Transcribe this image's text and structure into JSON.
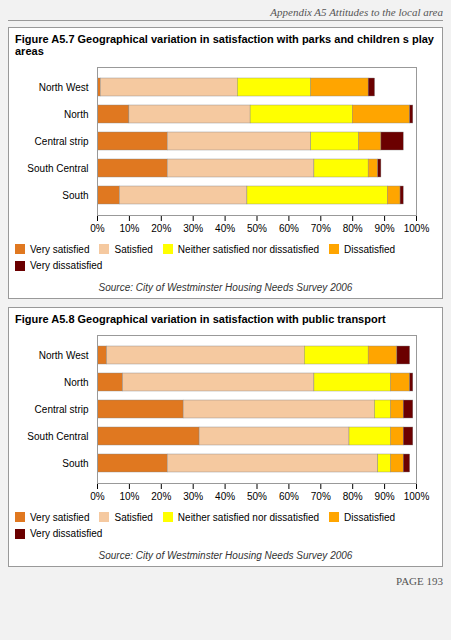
{
  "chart_data": [
    {
      "type": "bar",
      "orientation": "horizontal",
      "stacked": true,
      "legend": "bottom",
      "grid": false,
      "title": "Figure A5.7 Geographical variation in satisfaction with parks and children s play areas",
      "categories": [
        "North West",
        "North",
        "Central strip",
        "South Central",
        "South"
      ],
      "series": [
        {
          "name": "Very satisfied",
          "color": "#E07820",
          "values": [
            1,
            10,
            22,
            22,
            7
          ]
        },
        {
          "name": "Satisfied",
          "color": "#F5C9A0",
          "values": [
            43,
            38,
            45,
            46,
            40
          ]
        },
        {
          "name": "Neither satisfied nor dissatisfied",
          "color": "#FFFF00",
          "values": [
            23,
            32,
            15,
            17,
            44
          ]
        },
        {
          "name": "Dissatisfied",
          "color": "#FFA500",
          "values": [
            18,
            18,
            7,
            3,
            4
          ]
        },
        {
          "name": "Very dissatisfied",
          "color": "#6B0000",
          "values": [
            2,
            1,
            7,
            1,
            1
          ]
        }
      ],
      "xlim": [
        0,
        100
      ],
      "xticks": [
        {
          "value": 0,
          "label": "0%"
        },
        {
          "value": 10,
          "label": "10%"
        },
        {
          "value": 20,
          "label": "20%"
        },
        {
          "value": 30,
          "label": "30%"
        },
        {
          "value": 40,
          "label": "40%"
        },
        {
          "value": 50,
          "label": "50%"
        },
        {
          "value": 60,
          "label": "60%"
        },
        {
          "value": 70,
          "label": "70%"
        },
        {
          "value": 80,
          "label": "80%"
        },
        {
          "value": 90,
          "label": "90%"
        },
        {
          "value": 100,
          "label": "100%"
        }
      ],
      "annotations": [
        "Source: City of Westminster Housing Needs Survey 2006"
      ]
    },
    {
      "type": "bar",
      "orientation": "horizontal",
      "stacked": true,
      "legend": "bottom",
      "grid": false,
      "title": "Figure A5.8 Geographical variation in satisfaction with public transport",
      "categories": [
        "North West",
        "North",
        "Central strip",
        "South Central",
        "South"
      ],
      "series": [
        {
          "name": "Very satisfied",
          "color": "#E07820",
          "values": [
            3,
            8,
            27,
            32,
            22
          ]
        },
        {
          "name": "Satisfied",
          "color": "#F5C9A0",
          "values": [
            62,
            60,
            60,
            47,
            66
          ]
        },
        {
          "name": "Neither satisfied nor dissatisfied",
          "color": "#FFFF00",
          "values": [
            20,
            24,
            5,
            13,
            4
          ]
        },
        {
          "name": "Dissatisfied",
          "color": "#FFA500",
          "values": [
            9,
            6,
            4,
            4,
            4
          ]
        },
        {
          "name": "Very dissatisfied",
          "color": "#6B0000",
          "values": [
            4,
            1,
            3,
            3,
            2
          ]
        }
      ],
      "xlim": [
        0,
        100
      ],
      "xticks": [
        {
          "value": 0,
          "label": "0%"
        },
        {
          "value": 10,
          "label": "10%"
        },
        {
          "value": 20,
          "label": "20%"
        },
        {
          "value": 30,
          "label": "30%"
        },
        {
          "value": 40,
          "label": "40%"
        },
        {
          "value": 50,
          "label": "50%"
        },
        {
          "value": 60,
          "label": "60%"
        },
        {
          "value": 70,
          "label": "70%"
        },
        {
          "value": 80,
          "label": "80%"
        },
        {
          "value": 90,
          "label": "90%"
        },
        {
          "value": 100,
          "label": "100%"
        }
      ],
      "annotations": [
        "Source: City of Westminster Housing Needs Survey 2006"
      ]
    }
  ],
  "annotations": [
    "Appendix A5 Attitudes to the local area",
    "PAGE 193"
  ]
}
